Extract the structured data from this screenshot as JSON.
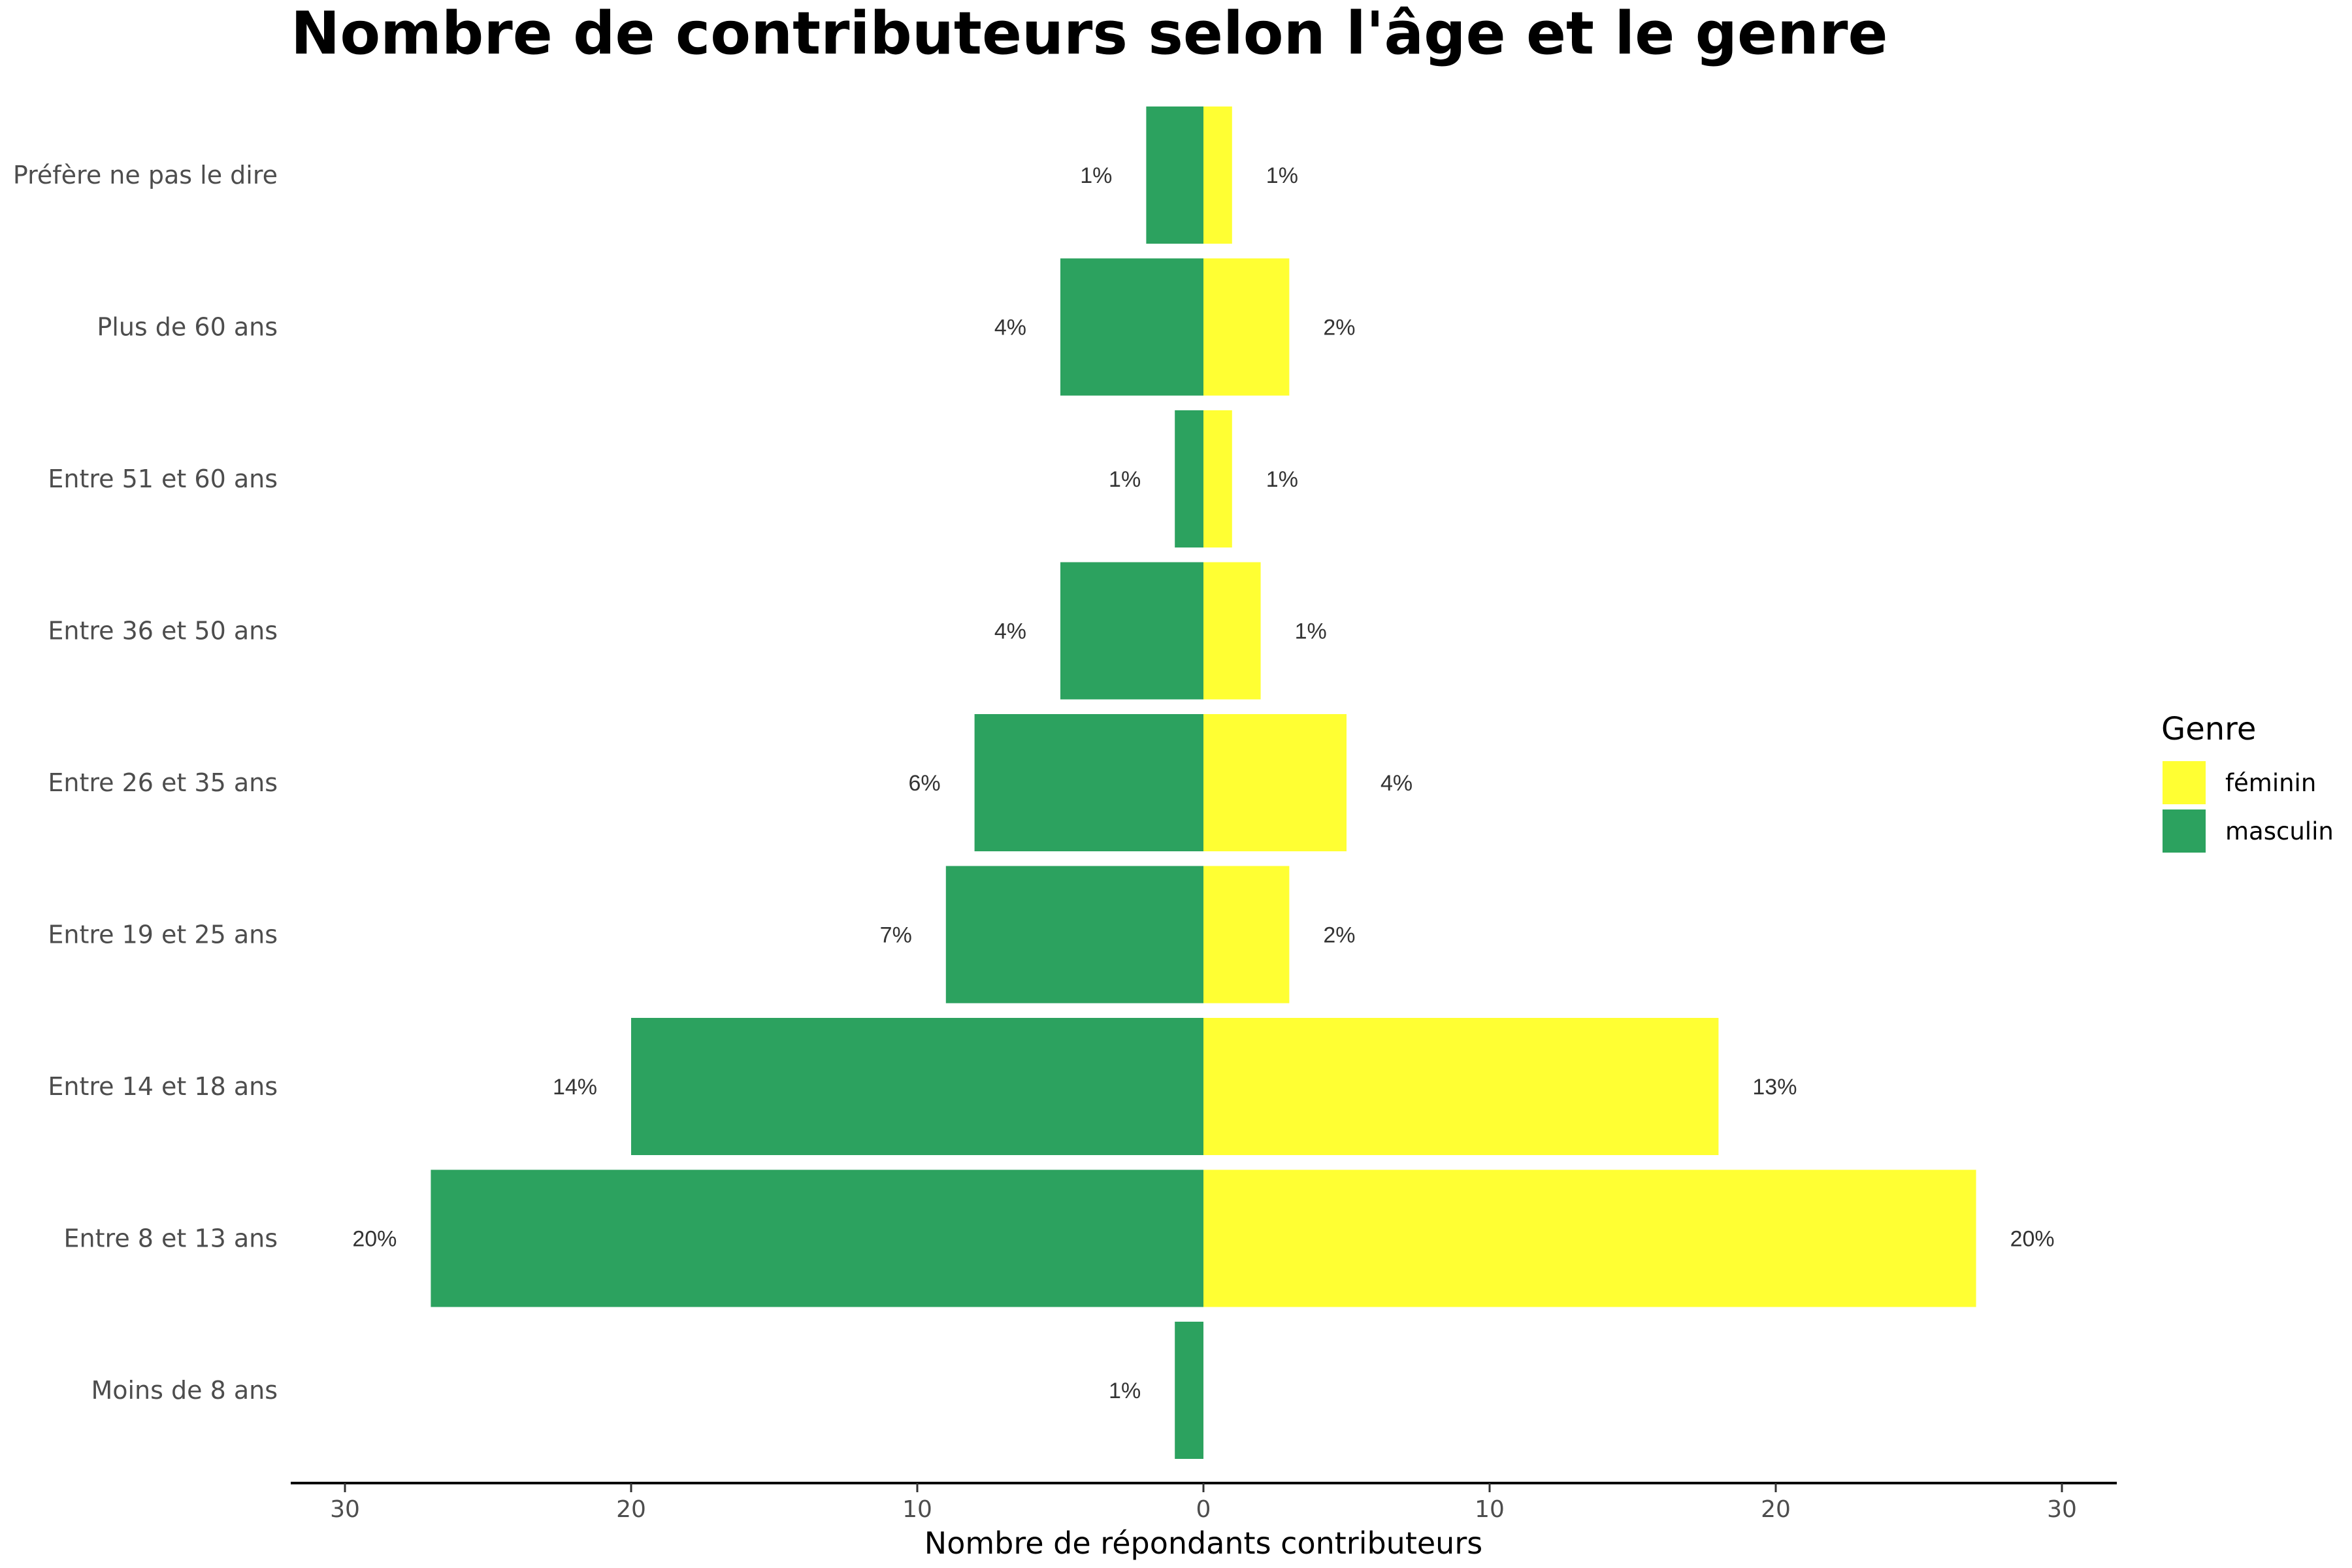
{
  "chart_data": {
    "type": "bar",
    "orientation": "horizontal",
    "title": "Nombre de contributeurs selon l'âge et le genre",
    "xlabel": "Nombre de répondants contributeurs",
    "xlim": [
      -30,
      30
    ],
    "xticks": [
      -30,
      -20,
      -10,
      0,
      10,
      20,
      30
    ],
    "xtick_labels": [
      "30",
      "20",
      "10",
      "0",
      "10",
      "20",
      "30"
    ],
    "grid": false,
    "legend": {
      "title": "Genre",
      "position": "right"
    },
    "categories": [
      "Préfère ne pas le dire",
      "Plus de 60 ans",
      "Entre 51 et 60 ans",
      "Entre 36 et 50 ans",
      "Entre 26 et 35 ans",
      "Entre 19 et 25 ans",
      "Entre 14 et 18 ans",
      "Entre 8 et 13 ans",
      "Moins de 8 ans"
    ],
    "series": [
      {
        "name": "féminin",
        "color": "#ffff33",
        "values": [
          1,
          3,
          1,
          2,
          5,
          3,
          18,
          27,
          0
        ],
        "labels": [
          "1%",
          "2%",
          "1%",
          "1%",
          "4%",
          "2%",
          "13%",
          "20%",
          ""
        ]
      },
      {
        "name": "masculin",
        "color": "#2ca25f",
        "values": [
          2,
          5,
          1,
          5,
          8,
          9,
          20,
          27,
          1
        ],
        "labels": [
          "1%",
          "4%",
          "1%",
          "4%",
          "6%",
          "7%",
          "14%",
          "20%",
          "1%"
        ]
      }
    ]
  }
}
